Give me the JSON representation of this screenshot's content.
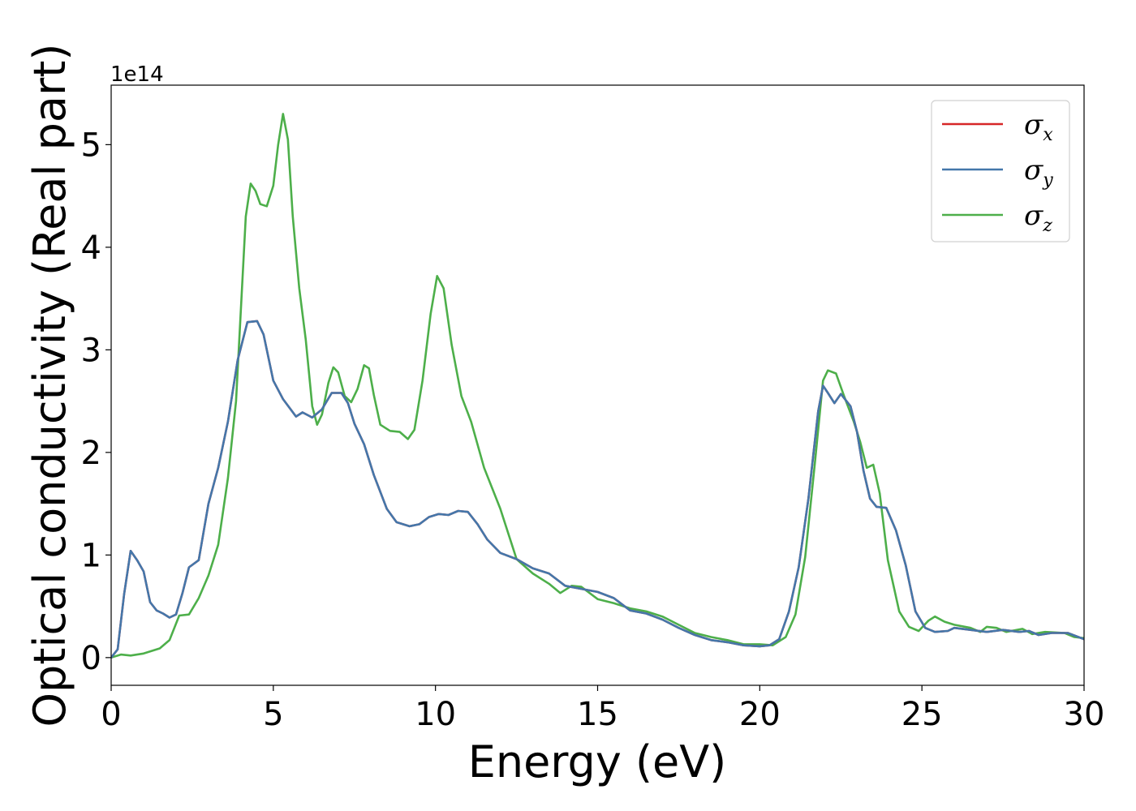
{
  "chart_data": {
    "type": "line",
    "xlabel": "Energy (eV)",
    "ylabel": "Optical conductivity (Real part)",
    "y_offset_label": "1e14",
    "xlim": [
      0,
      30
    ],
    "ylim": [
      -0.27,
      5.58
    ],
    "y_scale_factor": 100000000000000.0,
    "xticks": [
      0,
      5,
      10,
      15,
      20,
      25,
      30
    ],
    "yticks": [
      0,
      1,
      2,
      3,
      4,
      5
    ],
    "grid": false,
    "legend_position": "top-right",
    "series": [
      {
        "name": "σx",
        "symbol": "σ",
        "sub": "x",
        "color": "#d62728",
        "points": [
          [
            0,
            0
          ],
          [
            0.2,
            0.08
          ],
          [
            0.4,
            0.62
          ],
          [
            0.6,
            1.04
          ],
          [
            0.8,
            0.95
          ],
          [
            1.0,
            0.84
          ],
          [
            1.2,
            0.54
          ],
          [
            1.4,
            0.46
          ],
          [
            1.6,
            0.43
          ],
          [
            1.8,
            0.39
          ],
          [
            2.0,
            0.42
          ],
          [
            2.2,
            0.63
          ],
          [
            2.4,
            0.88
          ],
          [
            2.7,
            0.95
          ],
          [
            3.0,
            1.5
          ],
          [
            3.3,
            1.85
          ],
          [
            3.6,
            2.3
          ],
          [
            3.9,
            2.9
          ],
          [
            4.2,
            3.27
          ],
          [
            4.5,
            3.28
          ],
          [
            4.7,
            3.15
          ],
          [
            5.0,
            2.7
          ],
          [
            5.3,
            2.52
          ],
          [
            5.7,
            2.35
          ],
          [
            5.9,
            2.39
          ],
          [
            6.2,
            2.34
          ],
          [
            6.5,
            2.42
          ],
          [
            6.8,
            2.58
          ],
          [
            7.1,
            2.58
          ],
          [
            7.3,
            2.48
          ],
          [
            7.5,
            2.28
          ],
          [
            7.8,
            2.08
          ],
          [
            8.1,
            1.78
          ],
          [
            8.5,
            1.45
          ],
          [
            8.8,
            1.32
          ],
          [
            9.2,
            1.28
          ],
          [
            9.5,
            1.3
          ],
          [
            9.8,
            1.37
          ],
          [
            10.1,
            1.4
          ],
          [
            10.4,
            1.39
          ],
          [
            10.7,
            1.43
          ],
          [
            11.0,
            1.42
          ],
          [
            11.3,
            1.3
          ],
          [
            11.6,
            1.15
          ],
          [
            12.0,
            1.02
          ],
          [
            12.5,
            0.96
          ],
          [
            13.0,
            0.87
          ],
          [
            13.5,
            0.82
          ],
          [
            14.0,
            0.7
          ],
          [
            14.5,
            0.67
          ],
          [
            15.0,
            0.64
          ],
          [
            15.5,
            0.58
          ],
          [
            16.0,
            0.46
          ],
          [
            16.5,
            0.43
          ],
          [
            17.0,
            0.37
          ],
          [
            17.5,
            0.29
          ],
          [
            18.0,
            0.22
          ],
          [
            18.5,
            0.17
          ],
          [
            19.0,
            0.15
          ],
          [
            19.5,
            0.12
          ],
          [
            20.0,
            0.11
          ],
          [
            20.3,
            0.12
          ],
          [
            20.6,
            0.18
          ],
          [
            20.9,
            0.45
          ],
          [
            21.2,
            0.88
          ],
          [
            21.5,
            1.55
          ],
          [
            21.8,
            2.4
          ],
          [
            21.95,
            2.65
          ],
          [
            22.1,
            2.58
          ],
          [
            22.3,
            2.48
          ],
          [
            22.5,
            2.57
          ],
          [
            22.8,
            2.45
          ],
          [
            23.0,
            2.2
          ],
          [
            23.2,
            1.82
          ],
          [
            23.4,
            1.55
          ],
          [
            23.6,
            1.47
          ],
          [
            23.9,
            1.46
          ],
          [
            24.2,
            1.24
          ],
          [
            24.5,
            0.9
          ],
          [
            24.8,
            0.45
          ],
          [
            25.1,
            0.29
          ],
          [
            25.4,
            0.25
          ],
          [
            25.8,
            0.26
          ],
          [
            26.0,
            0.29
          ],
          [
            26.5,
            0.27
          ],
          [
            27.0,
            0.25
          ],
          [
            27.5,
            0.27
          ],
          [
            28.0,
            0.25
          ],
          [
            28.3,
            0.26
          ],
          [
            28.6,
            0.22
          ],
          [
            29.0,
            0.24
          ],
          [
            29.5,
            0.24
          ],
          [
            30.0,
            0.18
          ]
        ]
      },
      {
        "name": "σy",
        "symbol": "σ",
        "sub": "y",
        "color": "#4477aa",
        "points": [
          [
            0,
            0
          ],
          [
            0.2,
            0.08
          ],
          [
            0.4,
            0.62
          ],
          [
            0.6,
            1.04
          ],
          [
            0.8,
            0.95
          ],
          [
            1.0,
            0.84
          ],
          [
            1.2,
            0.54
          ],
          [
            1.4,
            0.46
          ],
          [
            1.6,
            0.43
          ],
          [
            1.8,
            0.39
          ],
          [
            2.0,
            0.42
          ],
          [
            2.2,
            0.63
          ],
          [
            2.4,
            0.88
          ],
          [
            2.7,
            0.95
          ],
          [
            3.0,
            1.5
          ],
          [
            3.3,
            1.85
          ],
          [
            3.6,
            2.3
          ],
          [
            3.9,
            2.9
          ],
          [
            4.2,
            3.27
          ],
          [
            4.5,
            3.28
          ],
          [
            4.7,
            3.15
          ],
          [
            5.0,
            2.7
          ],
          [
            5.3,
            2.52
          ],
          [
            5.7,
            2.35
          ],
          [
            5.9,
            2.39
          ],
          [
            6.2,
            2.34
          ],
          [
            6.5,
            2.42
          ],
          [
            6.8,
            2.58
          ],
          [
            7.1,
            2.58
          ],
          [
            7.3,
            2.48
          ],
          [
            7.5,
            2.28
          ],
          [
            7.8,
            2.08
          ],
          [
            8.1,
            1.78
          ],
          [
            8.5,
            1.45
          ],
          [
            8.8,
            1.32
          ],
          [
            9.2,
            1.28
          ],
          [
            9.5,
            1.3
          ],
          [
            9.8,
            1.37
          ],
          [
            10.1,
            1.4
          ],
          [
            10.4,
            1.39
          ],
          [
            10.7,
            1.43
          ],
          [
            11.0,
            1.42
          ],
          [
            11.3,
            1.3
          ],
          [
            11.6,
            1.15
          ],
          [
            12.0,
            1.02
          ],
          [
            12.5,
            0.96
          ],
          [
            13.0,
            0.87
          ],
          [
            13.5,
            0.82
          ],
          [
            14.0,
            0.7
          ],
          [
            14.5,
            0.67
          ],
          [
            15.0,
            0.64
          ],
          [
            15.5,
            0.58
          ],
          [
            16.0,
            0.46
          ],
          [
            16.5,
            0.43
          ],
          [
            17.0,
            0.37
          ],
          [
            17.5,
            0.29
          ],
          [
            18.0,
            0.22
          ],
          [
            18.5,
            0.17
          ],
          [
            19.0,
            0.15
          ],
          [
            19.5,
            0.12
          ],
          [
            20.0,
            0.11
          ],
          [
            20.3,
            0.12
          ],
          [
            20.6,
            0.18
          ],
          [
            20.9,
            0.45
          ],
          [
            21.2,
            0.88
          ],
          [
            21.5,
            1.55
          ],
          [
            21.8,
            2.4
          ],
          [
            21.95,
            2.65
          ],
          [
            22.1,
            2.58
          ],
          [
            22.3,
            2.48
          ],
          [
            22.5,
            2.57
          ],
          [
            22.8,
            2.45
          ],
          [
            23.0,
            2.2
          ],
          [
            23.2,
            1.82
          ],
          [
            23.4,
            1.55
          ],
          [
            23.6,
            1.47
          ],
          [
            23.9,
            1.46
          ],
          [
            24.2,
            1.24
          ],
          [
            24.5,
            0.9
          ],
          [
            24.8,
            0.45
          ],
          [
            25.1,
            0.29
          ],
          [
            25.4,
            0.25
          ],
          [
            25.8,
            0.26
          ],
          [
            26.0,
            0.29
          ],
          [
            26.5,
            0.27
          ],
          [
            27.0,
            0.25
          ],
          [
            27.5,
            0.27
          ],
          [
            28.0,
            0.25
          ],
          [
            28.3,
            0.26
          ],
          [
            28.6,
            0.22
          ],
          [
            29.0,
            0.24
          ],
          [
            29.5,
            0.24
          ],
          [
            30.0,
            0.18
          ]
        ]
      },
      {
        "name": "σz",
        "symbol": "σ",
        "sub": "z",
        "color": "#4daf4a",
        "points": [
          [
            0,
            0
          ],
          [
            0.3,
            0.03
          ],
          [
            0.6,
            0.02
          ],
          [
            1.0,
            0.04
          ],
          [
            1.5,
            0.09
          ],
          [
            1.8,
            0.17
          ],
          [
            2.1,
            0.41
          ],
          [
            2.4,
            0.42
          ],
          [
            2.7,
            0.58
          ],
          [
            3.0,
            0.8
          ],
          [
            3.3,
            1.1
          ],
          [
            3.6,
            1.75
          ],
          [
            3.85,
            2.5
          ],
          [
            4.0,
            3.4
          ],
          [
            4.15,
            4.3
          ],
          [
            4.3,
            4.62
          ],
          [
            4.45,
            4.55
          ],
          [
            4.6,
            4.42
          ],
          [
            4.8,
            4.4
          ],
          [
            5.0,
            4.6
          ],
          [
            5.15,
            5.0
          ],
          [
            5.3,
            5.3
          ],
          [
            5.45,
            5.05
          ],
          [
            5.6,
            4.3
          ],
          [
            5.8,
            3.6
          ],
          [
            6.0,
            3.1
          ],
          [
            6.2,
            2.45
          ],
          [
            6.35,
            2.27
          ],
          [
            6.5,
            2.37
          ],
          [
            6.7,
            2.68
          ],
          [
            6.85,
            2.83
          ],
          [
            7.0,
            2.78
          ],
          [
            7.2,
            2.55
          ],
          [
            7.4,
            2.49
          ],
          [
            7.6,
            2.62
          ],
          [
            7.8,
            2.85
          ],
          [
            7.95,
            2.82
          ],
          [
            8.1,
            2.56
          ],
          [
            8.3,
            2.27
          ],
          [
            8.6,
            2.21
          ],
          [
            8.9,
            2.2
          ],
          [
            9.15,
            2.13
          ],
          [
            9.35,
            2.22
          ],
          [
            9.6,
            2.7
          ],
          [
            9.85,
            3.35
          ],
          [
            10.05,
            3.72
          ],
          [
            10.25,
            3.6
          ],
          [
            10.5,
            3.05
          ],
          [
            10.8,
            2.55
          ],
          [
            11.1,
            2.3
          ],
          [
            11.5,
            1.85
          ],
          [
            12.0,
            1.45
          ],
          [
            12.5,
            0.96
          ],
          [
            13.0,
            0.82
          ],
          [
            13.5,
            0.72
          ],
          [
            13.85,
            0.63
          ],
          [
            14.2,
            0.7
          ],
          [
            14.5,
            0.69
          ],
          [
            15.0,
            0.57
          ],
          [
            15.5,
            0.53
          ],
          [
            16.0,
            0.48
          ],
          [
            16.5,
            0.45
          ],
          [
            17.0,
            0.4
          ],
          [
            17.5,
            0.32
          ],
          [
            18.0,
            0.24
          ],
          [
            18.5,
            0.2
          ],
          [
            19.0,
            0.17
          ],
          [
            19.5,
            0.13
          ],
          [
            20.0,
            0.13
          ],
          [
            20.4,
            0.12
          ],
          [
            20.8,
            0.2
          ],
          [
            21.1,
            0.42
          ],
          [
            21.4,
            0.98
          ],
          [
            21.7,
            1.9
          ],
          [
            21.95,
            2.7
          ],
          [
            22.1,
            2.8
          ],
          [
            22.35,
            2.77
          ],
          [
            22.6,
            2.55
          ],
          [
            22.9,
            2.3
          ],
          [
            23.1,
            2.1
          ],
          [
            23.3,
            1.85
          ],
          [
            23.5,
            1.88
          ],
          [
            23.7,
            1.6
          ],
          [
            23.95,
            0.95
          ],
          [
            24.3,
            0.45
          ],
          [
            24.6,
            0.3
          ],
          [
            24.9,
            0.26
          ],
          [
            25.2,
            0.36
          ],
          [
            25.4,
            0.4
          ],
          [
            25.7,
            0.35
          ],
          [
            26.0,
            0.32
          ],
          [
            26.5,
            0.29
          ],
          [
            26.8,
            0.25
          ],
          [
            27.0,
            0.3
          ],
          [
            27.3,
            0.29
          ],
          [
            27.6,
            0.25
          ],
          [
            28.1,
            0.28
          ],
          [
            28.4,
            0.23
          ],
          [
            28.8,
            0.25
          ],
          [
            29.4,
            0.24
          ],
          [
            29.7,
            0.2
          ],
          [
            30.0,
            0.19
          ]
        ]
      }
    ]
  }
}
